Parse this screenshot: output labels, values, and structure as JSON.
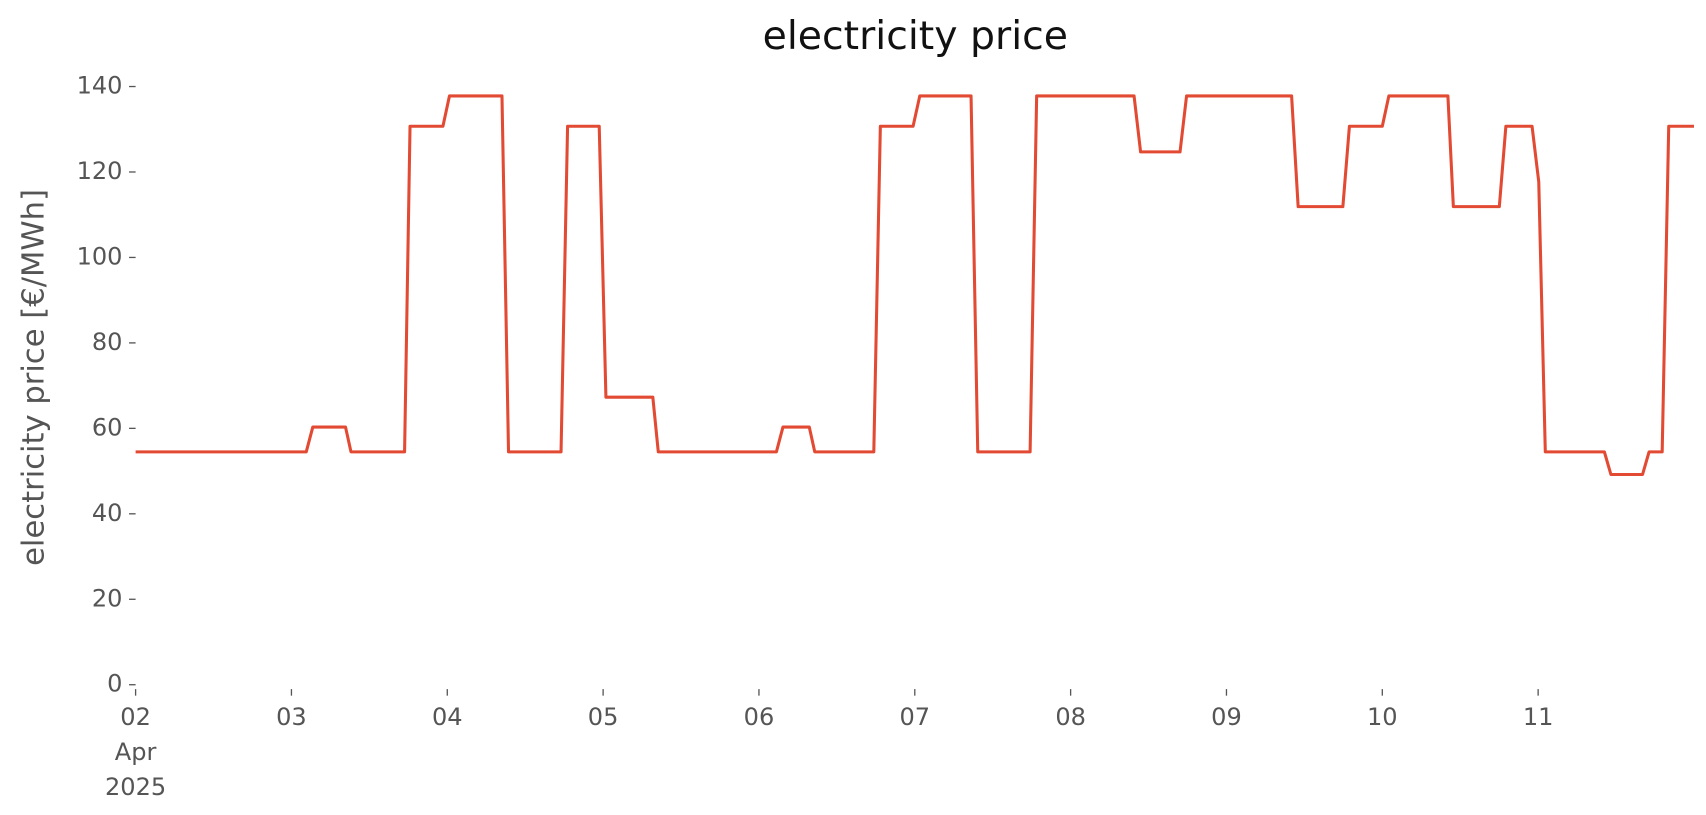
{
  "chart_data": {
    "type": "line",
    "title": "electricity price",
    "ylabel": "electricity price [€/MWh]",
    "x": [
      0,
      1.095,
      1.137,
      1.347,
      1.382,
      1.726,
      1.761,
      1.972,
      2.014,
      2.351,
      2.393,
      2.73,
      2.772,
      2.975,
      3.018,
      3.319,
      3.354,
      4.112,
      4.154,
      4.323,
      4.358,
      4.737,
      4.779,
      4.989,
      5.032,
      5.361,
      5.404,
      5.74,
      5.782,
      6.407,
      6.449,
      6.702,
      6.744,
      7.418,
      7.46,
      7.747,
      7.789,
      8.0,
      8.042,
      8.421,
      8.456,
      8.751,
      8.793,
      8.961,
      9.004,
      9.046,
      9.425,
      9.467,
      9.67,
      9.712,
      9.796,
      9.838,
      10
    ],
    "series": [
      {
        "name": "electricity price",
        "color": "#e24a33",
        "values": [
          54.5,
          54.5,
          60.3,
          60.3,
          54.5,
          54.5,
          130.7,
          130.7,
          137.8,
          137.8,
          54.5,
          54.5,
          130.7,
          130.7,
          67.3,
          67.3,
          54.5,
          54.5,
          60.3,
          60.3,
          54.5,
          54.5,
          130.7,
          130.7,
          137.8,
          137.8,
          54.5,
          54.5,
          137.8,
          137.8,
          124.7,
          124.7,
          137.8,
          137.8,
          111.9,
          111.9,
          130.7,
          130.7,
          137.8,
          137.8,
          111.9,
          111.9,
          130.7,
          130.7,
          117.7,
          54.5,
          54.5,
          49.2,
          49.2,
          54.5,
          54.5,
          130.7,
          130.7
        ]
      }
    ],
    "xlim": [
      0,
      10
    ],
    "xticks": [
      {
        "value": 0,
        "label": "02\nApr\n2025"
      },
      {
        "value": 1,
        "label": "03"
      },
      {
        "value": 2,
        "label": "04"
      },
      {
        "value": 3,
        "label": "05"
      },
      {
        "value": 4,
        "label": "06"
      },
      {
        "value": 5,
        "label": "07"
      },
      {
        "value": 6,
        "label": "08"
      },
      {
        "value": 7,
        "label": "09"
      },
      {
        "value": 8,
        "label": "10"
      },
      {
        "value": 9,
        "label": "11"
      }
    ],
    "ylim": [
      0,
      140
    ],
    "yticks": [
      0,
      20,
      40,
      60,
      80,
      100,
      120,
      140
    ],
    "grid": false
  }
}
